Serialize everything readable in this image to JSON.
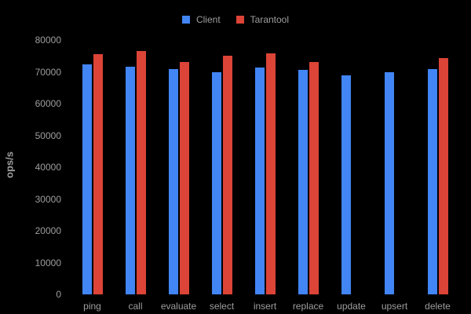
{
  "background": "#000000",
  "text_color": "#9e9e9e",
  "legend": {
    "position": "top-center",
    "items": [
      {
        "label": "Client",
        "color": "#4285F4"
      },
      {
        "label": "Tarantool",
        "color": "#DB4437"
      }
    ]
  },
  "chart_data": {
    "type": "bar",
    "title": "",
    "xlabel": "",
    "ylabel": "ops/s",
    "ylim": [
      0,
      80000
    ],
    "yticks": [
      0,
      10000,
      20000,
      30000,
      40000,
      50000,
      60000,
      70000,
      80000
    ],
    "grid": false,
    "legend_position": "top",
    "categories": [
      "ping",
      "call",
      "evaluate",
      "select",
      "insert",
      "replace",
      "update",
      "upsert",
      "delete"
    ],
    "series": [
      {
        "name": "Client",
        "color": "#4285F4",
        "values": [
          72300,
          71500,
          70800,
          69800,
          71300,
          70500,
          68900,
          69900,
          70800
        ]
      },
      {
        "name": "Tarantool",
        "color": "#DB4437",
        "values": [
          75500,
          76500,
          73000,
          75100,
          75700,
          73200,
          null,
          null,
          74400
        ]
      }
    ]
  }
}
